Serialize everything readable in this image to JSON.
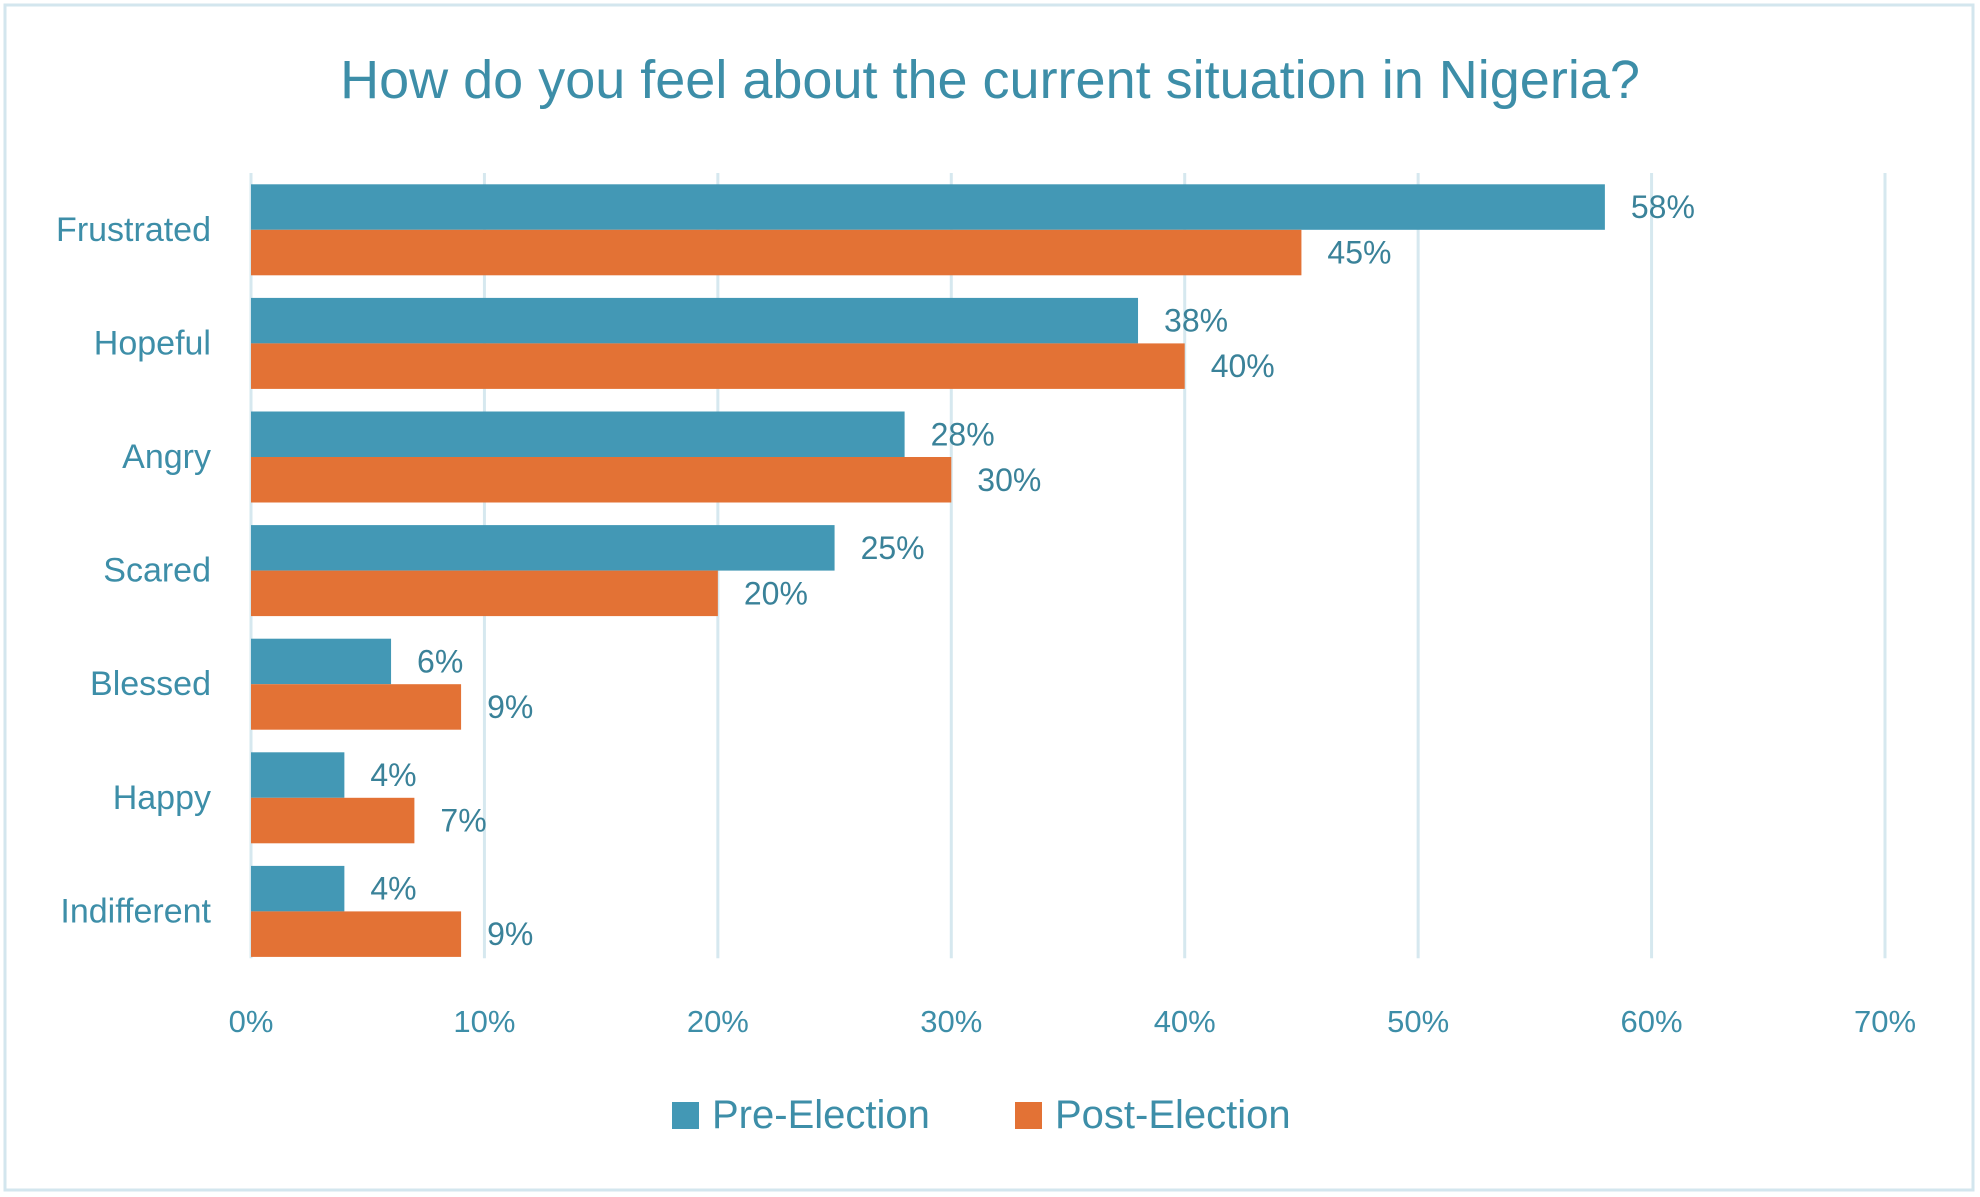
{
  "chart_data": {
    "type": "bar",
    "orientation": "horizontal",
    "title": "How do you feel about the current situation in Nigeria?",
    "categories": [
      "Frustrated",
      "Hopeful",
      "Angry",
      "Scared",
      "Blessed",
      "Happy",
      "Indifferent"
    ],
    "series": [
      {
        "name": "Pre-Election",
        "color": "#4398b5",
        "values": [
          58,
          38,
          28,
          25,
          6,
          4,
          4
        ],
        "labels": [
          "58%",
          "38%",
          "28%",
          "25%",
          "6%",
          "4%",
          "4%"
        ]
      },
      {
        "name": "Post-Election",
        "color": "#e37235",
        "values": [
          45,
          40,
          30,
          20,
          9,
          7,
          9
        ],
        "labels": [
          "45%",
          "40%",
          "30%",
          "20%",
          "9%",
          "7%",
          "9%"
        ]
      }
    ],
    "xlim": [
      0,
      70
    ],
    "xticks": [
      "0%",
      "10%",
      "20%",
      "30%",
      "40%",
      "50%",
      "60%",
      "70%"
    ],
    "grid": true,
    "legend": "bottom",
    "text_color": "#3d8ea8",
    "grid_color": "#d6e8ef"
  }
}
